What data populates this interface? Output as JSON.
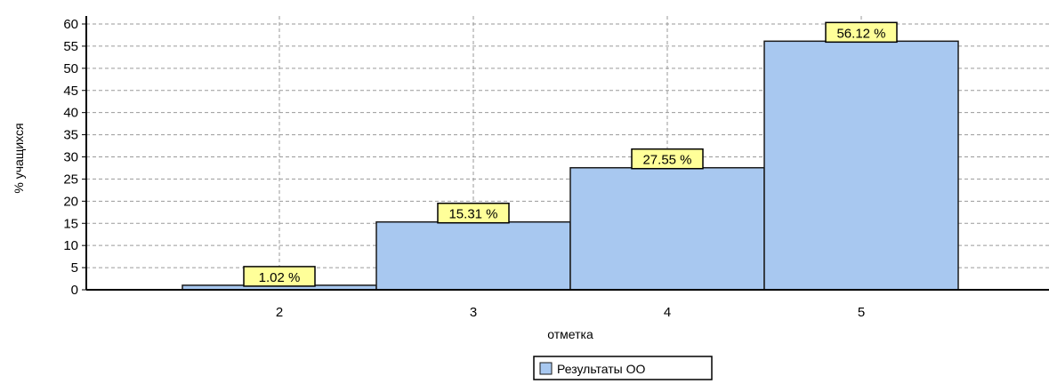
{
  "chart_data": {
    "type": "bar",
    "categories": [
      "2",
      "3",
      "4",
      "5"
    ],
    "series": [
      {
        "name": "Результаты ОО",
        "values": [
          1.02,
          15.31,
          27.55,
          56.12
        ],
        "labels": [
          "1.02 %",
          "15.31 %",
          "27.55 %",
          "56.12 %"
        ]
      }
    ],
    "xlabel": "отметка",
    "ylabel": "% учащихся",
    "ylim": [
      0,
      60
    ],
    "yticks": [
      "0",
      "5",
      "10",
      "15",
      "20",
      "25",
      "30",
      "35",
      "40",
      "45",
      "50",
      "55",
      "60"
    ],
    "grid": true,
    "legend_position": "bottom-center",
    "colors": {
      "bar_fill": "#a8c8f0",
      "bar_stroke": "#1a1a1a",
      "label_bg": "#ffff99",
      "grid": "#9a9a9a",
      "axis": "#000000"
    }
  }
}
